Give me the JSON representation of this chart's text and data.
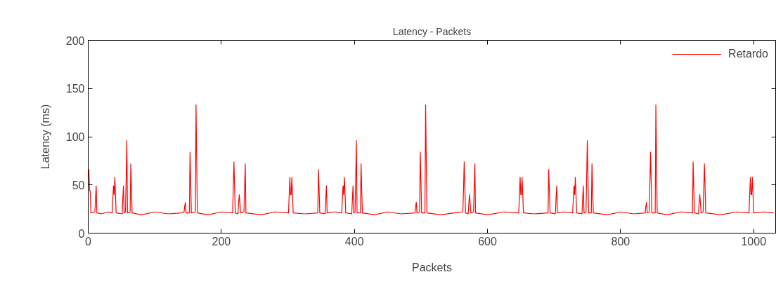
{
  "chart_data": {
    "type": "line",
    "title": "Latency - Packets",
    "xlabel": "Packets",
    "ylabel": "Latency (ms)",
    "xlim": [
      0,
      1033
    ],
    "xticks": [
      0,
      200,
      400,
      600,
      800,
      1000
    ],
    "ylim": [
      0,
      200
    ],
    "yticks": [
      0,
      50,
      100,
      150,
      200
    ],
    "grid": false,
    "legend": "top right",
    "marker": "none",
    "line_style": "solid",
    "series": [
      {
        "name": "Retardo",
        "color": "#ff0000",
        "x": [
          0,
          1,
          2,
          3,
          4,
          10,
          11,
          12,
          13,
          20,
          30,
          36,
          37,
          38,
          39,
          40,
          41,
          42,
          51,
          52,
          53,
          54,
          56,
          57,
          58,
          59,
          63,
          64,
          65,
          66,
          80,
          100,
          120,
          140,
          144,
          145,
          146,
          147,
          152,
          153,
          154,
          155,
          161,
          162,
          163,
          164,
          180,
          200,
          217,
          218,
          219,
          220,
          221,
          225,
          226,
          227,
          228,
          229,
          234,
          235,
          236,
          237,
          260,
          280,
          301,
          302,
          303,
          304,
          305,
          306,
          307,
          308,
          325,
          345,
          346,
          347,
          348,
          356,
          357,
          358,
          359,
          370,
          381,
          382,
          383,
          384,
          385,
          386,
          387,
          396,
          397,
          398,
          399,
          401,
          402,
          403,
          404,
          409,
          410,
          411,
          412,
          430,
          450,
          470,
          491,
          492,
          493,
          494,
          498,
          499,
          500,
          501,
          506,
          507,
          508,
          509,
          530,
          550,
          563,
          564,
          565,
          566,
          567,
          571,
          572,
          573,
          574,
          575,
          579,
          580,
          581,
          582,
          600,
          625,
          647,
          648,
          649,
          650,
          651,
          652,
          653,
          654,
          670,
          691,
          692,
          693,
          694,
          702,
          703,
          704,
          705,
          715,
          728,
          729,
          730,
          731,
          732,
          733,
          734,
          742,
          743,
          744,
          745,
          748,
          749,
          750,
          751,
          752,
          756,
          757,
          758,
          759,
          780,
          800,
          820,
          837,
          838,
          839,
          840,
          843,
          844,
          845,
          846,
          847,
          852,
          853,
          854,
          855,
          870,
          890,
          908,
          909,
          910,
          911,
          917,
          918,
          919,
          920,
          921,
          924,
          925,
          926,
          927,
          928,
          950,
          975,
          993,
          994,
          995,
          996,
          997,
          998,
          999,
          1000,
          1015,
          1030
        ],
        "values": [
          66,
          66,
          44,
          44,
          21,
          22,
          36,
          49,
          21,
          20,
          22,
          21,
          36,
          49,
          40,
          58,
          40,
          21,
          20,
          36,
          49,
          21,
          22,
          58,
          96,
          21,
          22,
          72,
          45,
          21,
          19,
          22,
          20,
          21,
          22,
          28,
          32,
          21,
          21,
          84,
          53,
          21,
          22,
          133,
          76,
          21,
          19,
          22,
          21,
          47,
          74,
          47,
          21,
          20,
          31,
          40,
          31,
          21,
          22,
          46,
          72,
          21,
          19,
          22,
          21,
          40,
          58,
          40,
          40,
          58,
          40,
          21,
          20,
          21,
          66,
          44,
          21,
          20,
          36,
          49,
          21,
          22,
          21,
          36,
          49,
          40,
          58,
          40,
          21,
          20,
          36,
          49,
          21,
          22,
          58,
          96,
          21,
          21,
          72,
          45,
          21,
          19,
          22,
          20,
          21,
          28,
          32,
          21,
          22,
          84,
          53,
          21,
          21,
          133,
          76,
          21,
          19,
          21,
          22,
          47,
          74,
          47,
          21,
          20,
          31,
          40,
          31,
          21,
          22,
          46,
          72,
          21,
          19,
          22,
          21,
          40,
          58,
          40,
          40,
          58,
          40,
          21,
          20,
          21,
          66,
          44,
          21,
          20,
          36,
          49,
          21,
          22,
          21,
          36,
          49,
          40,
          58,
          40,
          21,
          20,
          36,
          49,
          21,
          22,
          58,
          96,
          57,
          21,
          21,
          72,
          45,
          21,
          19,
          22,
          20,
          21,
          28,
          32,
          21,
          22,
          53,
          84,
          53,
          21,
          21,
          133,
          76,
          21,
          19,
          22,
          21,
          74,
          47,
          21,
          20,
          31,
          40,
          31,
          21,
          22,
          46,
          72,
          46,
          21,
          19,
          22,
          21,
          40,
          58,
          40,
          40,
          58,
          40,
          21,
          22,
          21
        ]
      }
    ]
  }
}
